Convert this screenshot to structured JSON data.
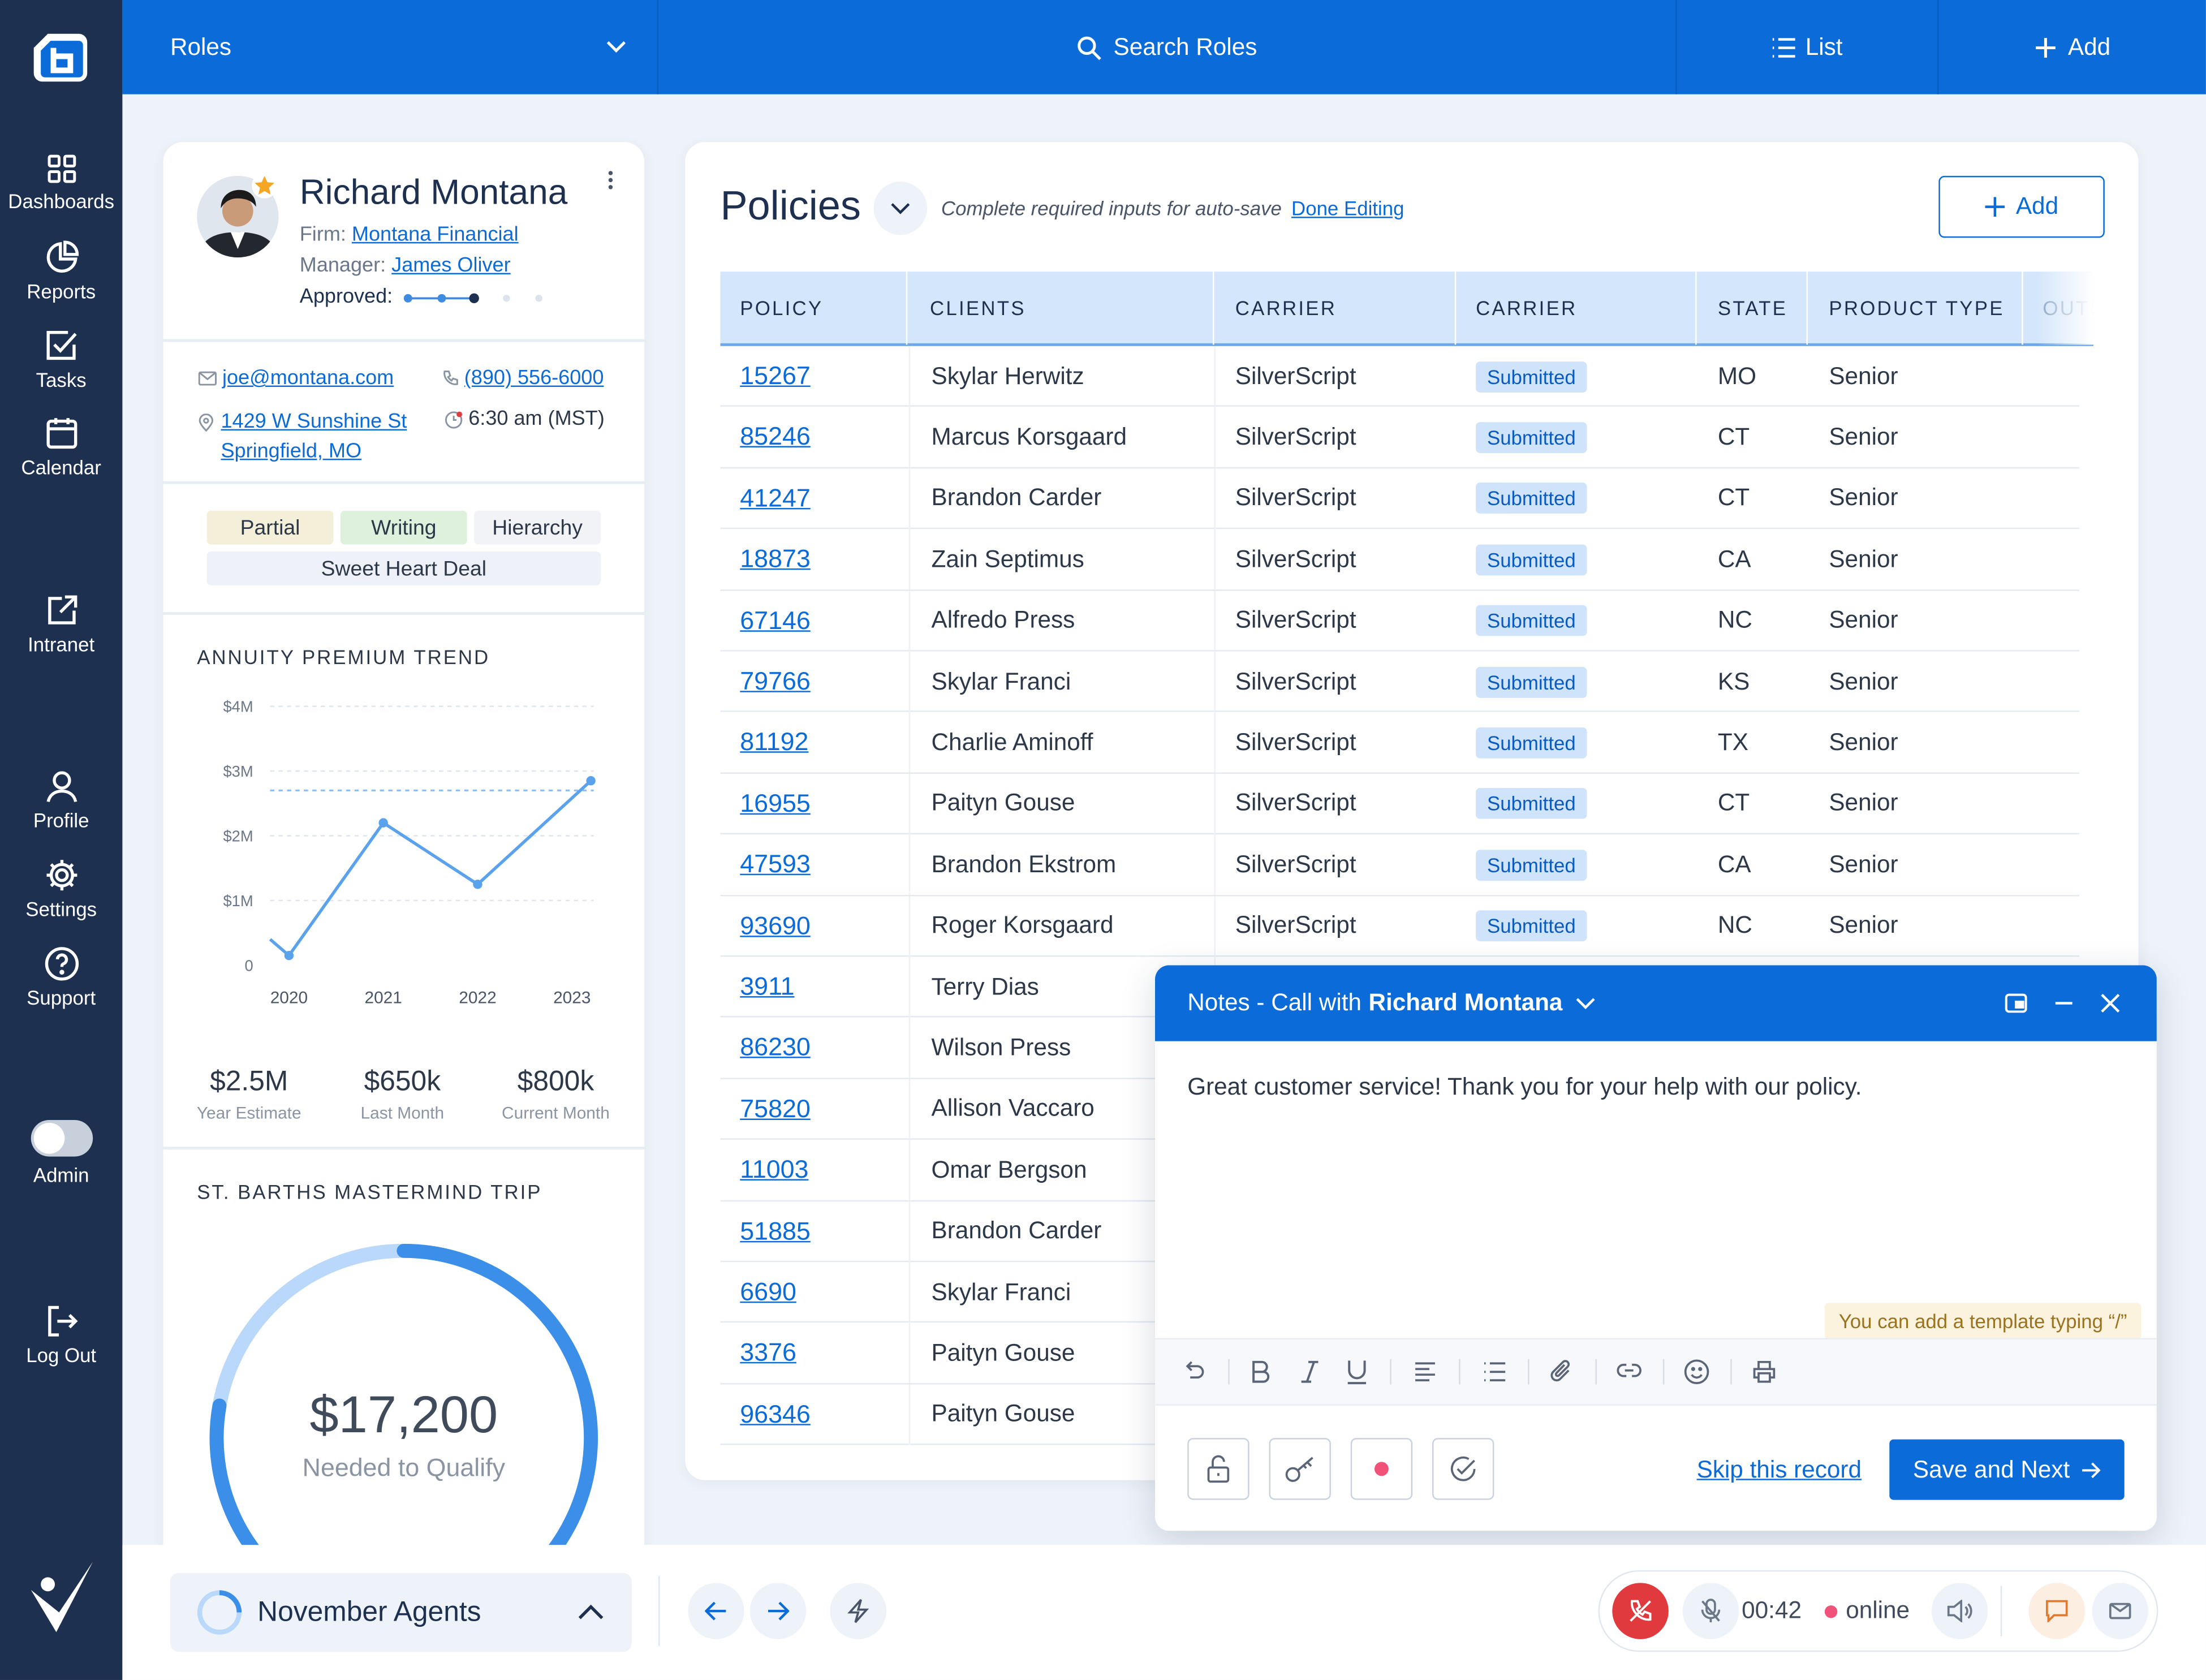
{
  "app": {
    "brand_color": "#0b6bd9",
    "sidebar_color": "#1e3050"
  },
  "sidebar": {
    "logo": "app-logo-icon",
    "items": [
      {
        "label": "Dashboards",
        "icon": "grid-icon"
      },
      {
        "label": "Reports",
        "icon": "pie-chart-icon"
      },
      {
        "label": "Tasks",
        "icon": "checkbox-icon"
      },
      {
        "label": "Calendar",
        "icon": "calendar-icon"
      },
      {
        "label": "Intranet",
        "icon": "external-link-icon"
      },
      {
        "label": "Profile",
        "icon": "user-icon"
      },
      {
        "label": "Settings",
        "icon": "gear-icon"
      },
      {
        "label": "Support",
        "icon": "help-icon"
      }
    ],
    "admin_label": "Admin",
    "admin_toggle_on": false,
    "logout_label": "Log Out"
  },
  "topbar": {
    "roles_label": "Roles",
    "search_label": "Search Roles",
    "list_label": "List",
    "add_label": "Add"
  },
  "profile": {
    "name": "Richard Montana",
    "firm_label": "Firm:",
    "firm": "Montana Financial",
    "manager_label": "Manager:",
    "manager": "James Oliver",
    "approved_label": "Approved:",
    "approved_steps_done": 3,
    "approved_steps_total": 5,
    "email": "joe@montana.com",
    "phone": "(890) 556-6000",
    "address_line1": "1429 W Sunshine St",
    "address_line2": "Springfield, MO",
    "local_time": "6:30 am (MST)",
    "tags": [
      "Partial",
      "Writing",
      "Hierarchy",
      "Sweet Heart Deal"
    ]
  },
  "annuity": {
    "title": "ANNUITY PREMIUM TREND",
    "stats": [
      {
        "value": "$2.5M",
        "label": "Year Estimate"
      },
      {
        "value": "$650k",
        "label": "Last Month"
      },
      {
        "value": "$800k",
        "label": "Current Month"
      }
    ]
  },
  "chart_data": {
    "type": "line",
    "x": [
      2019.8,
      2020,
      2021,
      2022,
      2023.2
    ],
    "values": [
      0.4,
      0.15,
      2.2,
      1.25,
      2.85
    ],
    "xticks": [
      "2020",
      "2021",
      "2022",
      "2023"
    ],
    "yticks": [
      "$4M",
      "$3M",
      "$2M",
      "$1M",
      "0"
    ],
    "ylim": [
      0,
      4
    ],
    "target": 2.7,
    "grid": true
  },
  "trip": {
    "title": "ST. BARTHS MASTERMIND TRIP",
    "amount": "$17,200",
    "subtitle": "Needed to Qualify"
  },
  "policies": {
    "title": "Policies",
    "hint": "Complete required inputs for auto-save",
    "done_editing": "Done Editing",
    "add_label": "Add",
    "columns": [
      "POLICY",
      "CLIENTS",
      "CARRIER",
      "CARRIER",
      "STATE",
      "PRODUCT TYPE",
      "OUTS"
    ],
    "rows": [
      {
        "policy": "15267",
        "client": "Skylar Herwitz",
        "carrier": "SilverScript",
        "status": "Submitted",
        "state": "MO",
        "product": "Senior"
      },
      {
        "policy": "85246",
        "client": "Marcus Korsgaard",
        "carrier": "SilverScript",
        "status": "Submitted",
        "state": "CT",
        "product": "Senior"
      },
      {
        "policy": "41247",
        "client": "Brandon Carder",
        "carrier": "SilverScript",
        "status": "Submitted",
        "state": "CT",
        "product": "Senior"
      },
      {
        "policy": "18873",
        "client": "Zain Septimus",
        "carrier": "SilverScript",
        "status": "Submitted",
        "state": "CA",
        "product": "Senior"
      },
      {
        "policy": "67146",
        "client": "Alfredo Press",
        "carrier": "SilverScript",
        "status": "Submitted",
        "state": "NC",
        "product": "Senior"
      },
      {
        "policy": "79766",
        "client": "Skylar Franci",
        "carrier": "SilverScript",
        "status": "Submitted",
        "state": "KS",
        "product": "Senior"
      },
      {
        "policy": "81192",
        "client": "Charlie Aminoff",
        "carrier": "SilverScript",
        "status": "Submitted",
        "state": "TX",
        "product": "Senior"
      },
      {
        "policy": "16955",
        "client": "Paityn Gouse",
        "carrier": "SilverScript",
        "status": "Submitted",
        "state": "CT",
        "product": "Senior"
      },
      {
        "policy": "47593",
        "client": "Brandon Ekstrom",
        "carrier": "SilverScript",
        "status": "Submitted",
        "state": "CA",
        "product": "Senior"
      },
      {
        "policy": "93690",
        "client": "Roger Korsgaard",
        "carrier": "SilverScript",
        "status": "Submitted",
        "state": "NC",
        "product": "Senior"
      },
      {
        "policy": "3911",
        "client": "Terry Dias"
      },
      {
        "policy": "86230",
        "client": "Wilson Press"
      },
      {
        "policy": "75820",
        "client": "Allison Vaccaro"
      },
      {
        "policy": "11003",
        "client": "Omar Bergson"
      },
      {
        "policy": "51885",
        "client": "Brandon Carder"
      },
      {
        "policy": "6690",
        "client": "Skylar Franci"
      },
      {
        "policy": "3376",
        "client": "Paityn Gouse"
      },
      {
        "policy": "96346",
        "client": "Paityn Gouse"
      }
    ]
  },
  "notes": {
    "title_prefix": "Notes - Call with",
    "title_name": "Richard Montana",
    "body": "Great customer service! Thank you for your help with our policy.",
    "template_hint": "You can add a template typing “/”",
    "skip_label": "Skip this record",
    "save_label": "Save and Next"
  },
  "bottombar": {
    "campaign": "November Agents",
    "call_time": "00:42",
    "status": "online"
  }
}
